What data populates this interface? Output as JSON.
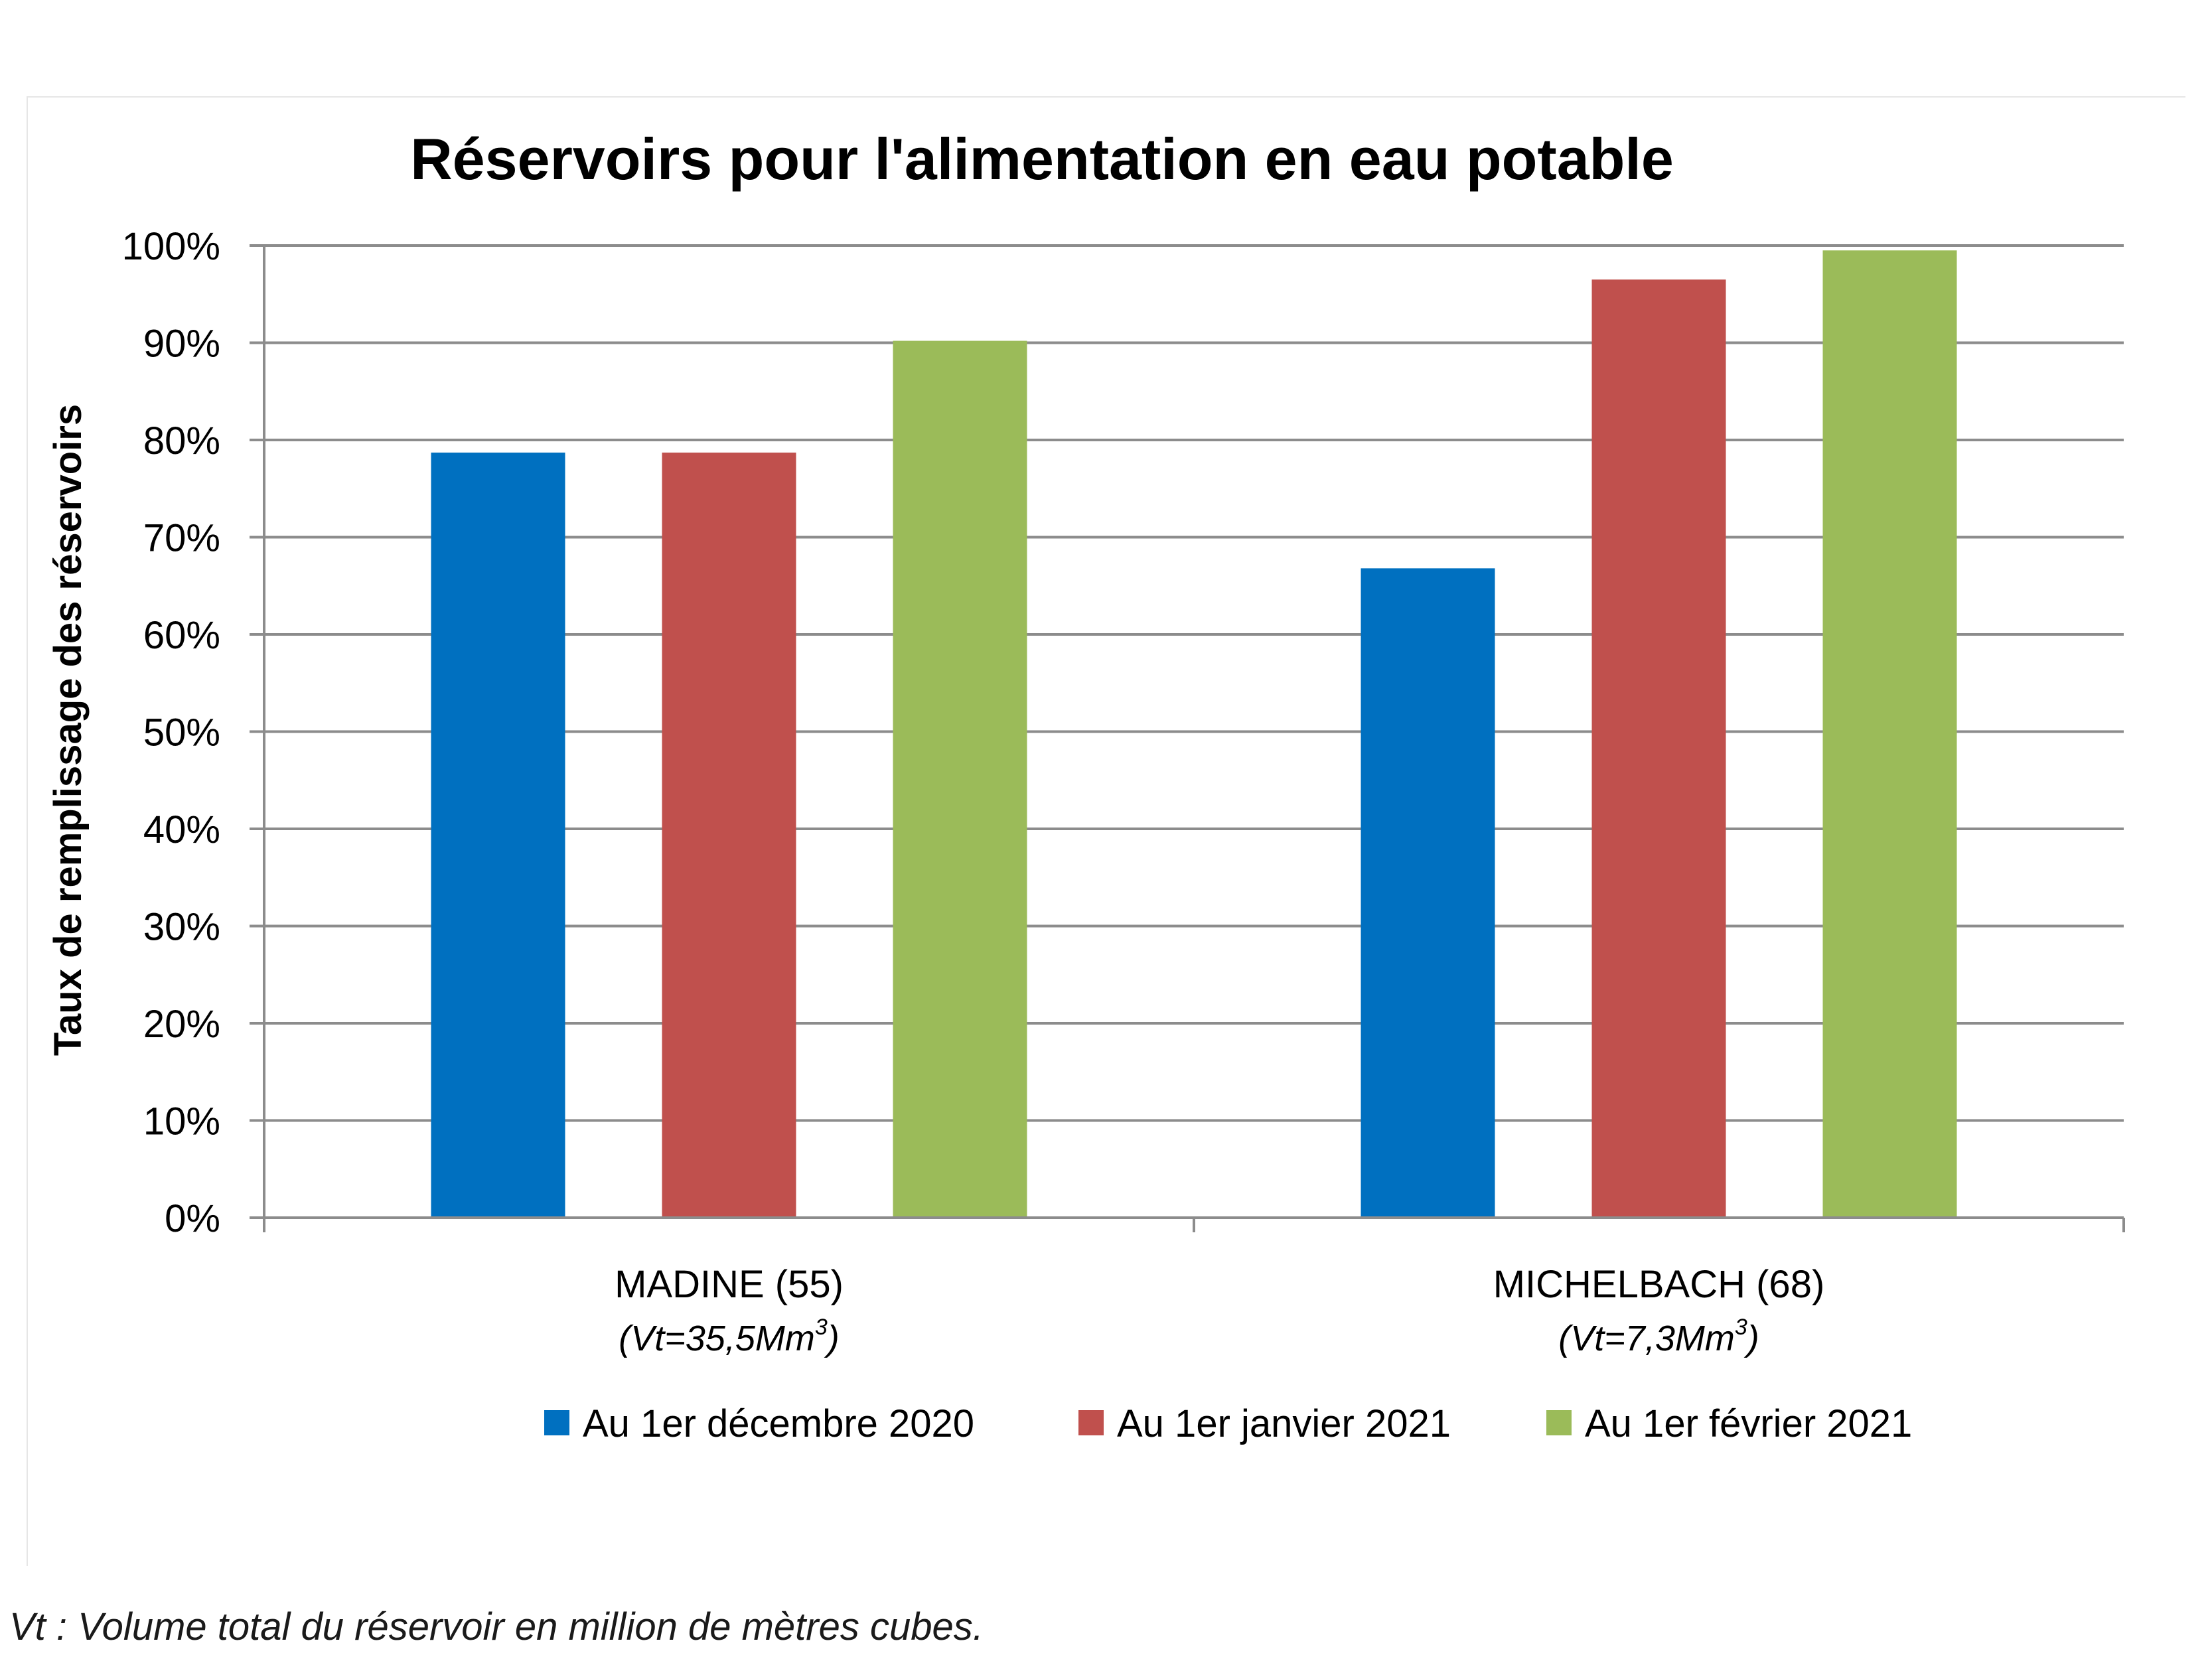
{
  "footnote": "Vt : Volume total du réservoir en million de mètres cubes.",
  "chart_data": {
    "type": "bar",
    "title": "Réservoirs pour l'alimentation en eau potable",
    "ylabel": "Taux de remplissage des réservoirs",
    "xlabel": "",
    "ylim": [
      0,
      100
    ],
    "y_ticks": [
      {
        "value": 0,
        "label": "0%"
      },
      {
        "value": 10,
        "label": "10%"
      },
      {
        "value": 20,
        "label": "20%"
      },
      {
        "value": 30,
        "label": "30%"
      },
      {
        "value": 40,
        "label": "40%"
      },
      {
        "value": 50,
        "label": "50%"
      },
      {
        "value": 60,
        "label": "60%"
      },
      {
        "value": 70,
        "label": "70%"
      },
      {
        "value": 80,
        "label": "80%"
      },
      {
        "value": 90,
        "label": "90%"
      },
      {
        "value": 100,
        "label": "100%"
      }
    ],
    "categories": [
      {
        "label": "MADINE (55)",
        "sublabel_prefix": "(Vt=35,5Mm",
        "sublabel_sup": "3",
        "sublabel_suffix": ")"
      },
      {
        "label": "MICHELBACH (68)",
        "sublabel_prefix": "(Vt=7,3Mm",
        "sublabel_sup": "3",
        "sublabel_suffix": ")"
      }
    ],
    "series": [
      {
        "name": "Au 1er décembre 2020",
        "color": "#0070c0",
        "values": [
          78.7,
          66.8
        ]
      },
      {
        "name": "Au 1er janvier 2021",
        "color": "#c0504d",
        "values": [
          78.7,
          96.5
        ]
      },
      {
        "name": "Au 1er février 2021",
        "color": "#9bbb59",
        "values": [
          90.2,
          99.5
        ]
      }
    ],
    "grid": true,
    "legend": "bottom"
  }
}
